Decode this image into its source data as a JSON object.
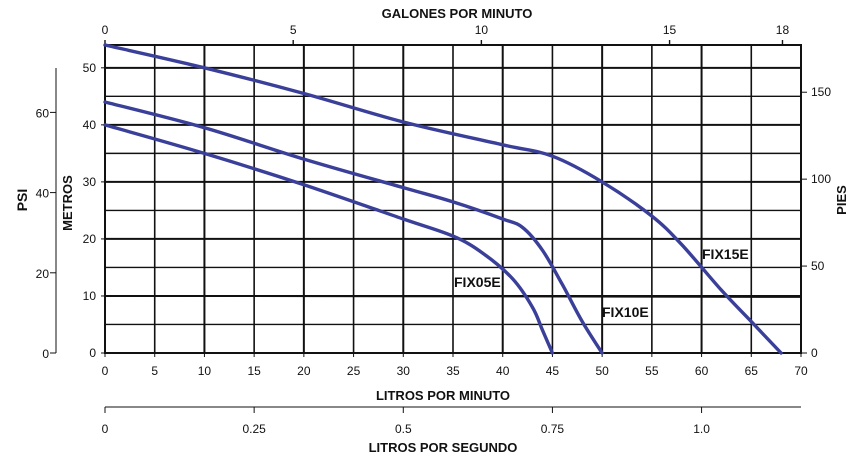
{
  "chart_data": {
    "type": "line",
    "top_axis": {
      "label": "GALONES POR MINUTO",
      "ticks": [
        "0",
        "5",
        "10",
        "15",
        "18"
      ],
      "tick_values": [
        0,
        5,
        10,
        15,
        18
      ]
    },
    "bottom_axis": {
      "label": "LITROS POR MINUTO",
      "ticks": [
        "0",
        "5",
        "10",
        "15",
        "20",
        "25",
        "30",
        "35",
        "40",
        "45",
        "50",
        "55",
        "60",
        "65",
        "70"
      ],
      "tick_values": [
        0,
        5,
        10,
        15,
        20,
        25,
        30,
        35,
        40,
        45,
        50,
        55,
        60,
        65,
        70
      ],
      "xlim": [
        0,
        70
      ]
    },
    "second_bottom_axis": {
      "label": "LITROS POR SEGUNDO",
      "ticks": [
        "0",
        "0.25",
        "0.5",
        "0.75",
        "1.0"
      ],
      "tick_values": [
        0,
        0.25,
        0.5,
        0.75,
        1.0
      ]
    },
    "left_axis": {
      "label": "METROS",
      "ticks": [
        "0",
        "10",
        "20",
        "30",
        "40",
        "50"
      ],
      "tick_values": [
        0,
        10,
        20,
        30,
        40,
        50
      ],
      "ylim": [
        0,
        54
      ]
    },
    "psi_axis": {
      "label": "PSI",
      "ticks": [
        "0",
        "20",
        "40",
        "60"
      ],
      "tick_values": [
        0,
        20,
        40,
        60
      ]
    },
    "right_axis": {
      "label": "PIES",
      "ticks": [
        "0",
        "50",
        "100",
        "150"
      ],
      "tick_values": [
        0,
        50,
        100,
        150
      ]
    },
    "grid": true,
    "reference_line_y": 10,
    "series": [
      {
        "name": "FIX05E",
        "x": [
          0,
          10,
          20,
          30,
          35,
          38,
          41,
          43,
          44,
          45
        ],
        "y": [
          40,
          35,
          29.5,
          23.5,
          20.5,
          17.5,
          13,
          8,
          4,
          0
        ]
      },
      {
        "name": "FIX10E",
        "x": [
          0,
          10,
          20,
          30,
          35,
          40,
          42,
          44,
          46,
          48,
          50
        ],
        "y": [
          44,
          39.5,
          34,
          29,
          26.5,
          23.5,
          22,
          18,
          12,
          5.5,
          0
        ]
      },
      {
        "name": "FIX15E",
        "x": [
          0,
          10,
          20,
          30,
          40,
          45,
          50,
          55,
          58,
          62,
          65,
          68
        ],
        "y": [
          54,
          50,
          45.5,
          40.5,
          36.5,
          34.5,
          30,
          24,
          19,
          11,
          5.5,
          0
        ]
      }
    ],
    "curve_labels": [
      "FIX05E",
      "FIX10E",
      "FIX15E"
    ]
  }
}
